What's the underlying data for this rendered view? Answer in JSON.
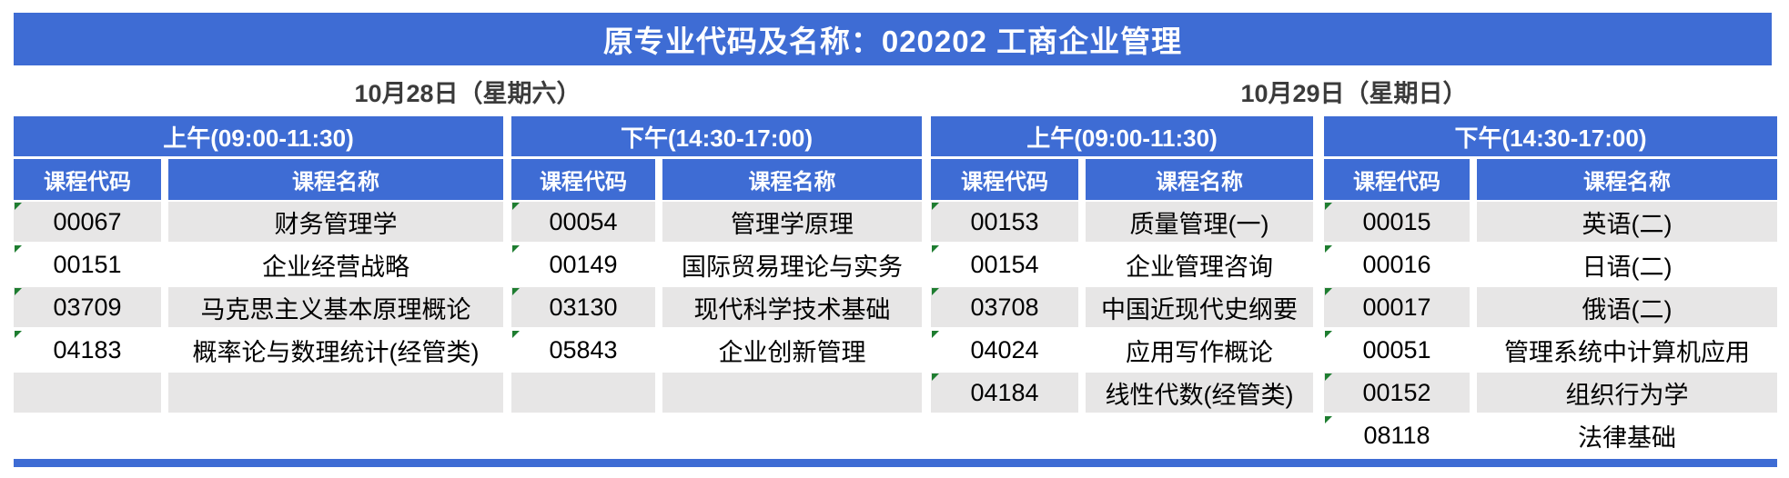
{
  "title": "原专业代码及名称：020202 工商企业管理",
  "colors": {
    "accent_blue": "#3E6CD4",
    "row_gray": "#E7E6E6",
    "flag_green": "#1E7D30"
  },
  "column_headers": {
    "code": "课程代码",
    "name": "课程名称"
  },
  "days": [
    {
      "date": "10月28日（星期六）",
      "sessions": [
        {
          "label": "上午(09:00-11:30)",
          "courses": [
            {
              "code": "00067",
              "name": "财务管理学"
            },
            {
              "code": "00151",
              "name": "企业经营战略"
            },
            {
              "code": "03709",
              "name": "马克思主义基本原理概论"
            },
            {
              "code": "04183",
              "name": "概率论与数理统计(经管类)"
            },
            {
              "code": "",
              "name": ""
            }
          ]
        },
        {
          "label": "下午(14:30-17:00)",
          "courses": [
            {
              "code": "00054",
              "name": "管理学原理"
            },
            {
              "code": "00149",
              "name": "国际贸易理论与实务"
            },
            {
              "code": "03130",
              "name": "现代科学技术基础"
            },
            {
              "code": "05843",
              "name": "企业创新管理"
            },
            {
              "code": "",
              "name": ""
            }
          ]
        }
      ]
    },
    {
      "date": "10月29日（星期日）",
      "sessions": [
        {
          "label": "上午(09:00-11:30)",
          "courses": [
            {
              "code": "00153",
              "name": "质量管理(一)"
            },
            {
              "code": "00154",
              "name": "企业管理咨询"
            },
            {
              "code": "03708",
              "name": "中国近现代史纲要"
            },
            {
              "code": "04024",
              "name": "应用写作概论"
            },
            {
              "code": "04184",
              "name": "线性代数(经管类)"
            }
          ]
        },
        {
          "label": "下午(14:30-17:00)",
          "courses": [
            {
              "code": "00015",
              "name": "英语(二)"
            },
            {
              "code": "00016",
              "name": "日语(二)"
            },
            {
              "code": "00017",
              "name": "俄语(二)"
            },
            {
              "code": "00051",
              "name": "管理系统中计算机应用"
            },
            {
              "code": "00152",
              "name": "组织行为学"
            },
            {
              "code": "08118",
              "name": "法律基础"
            }
          ]
        }
      ]
    }
  ]
}
